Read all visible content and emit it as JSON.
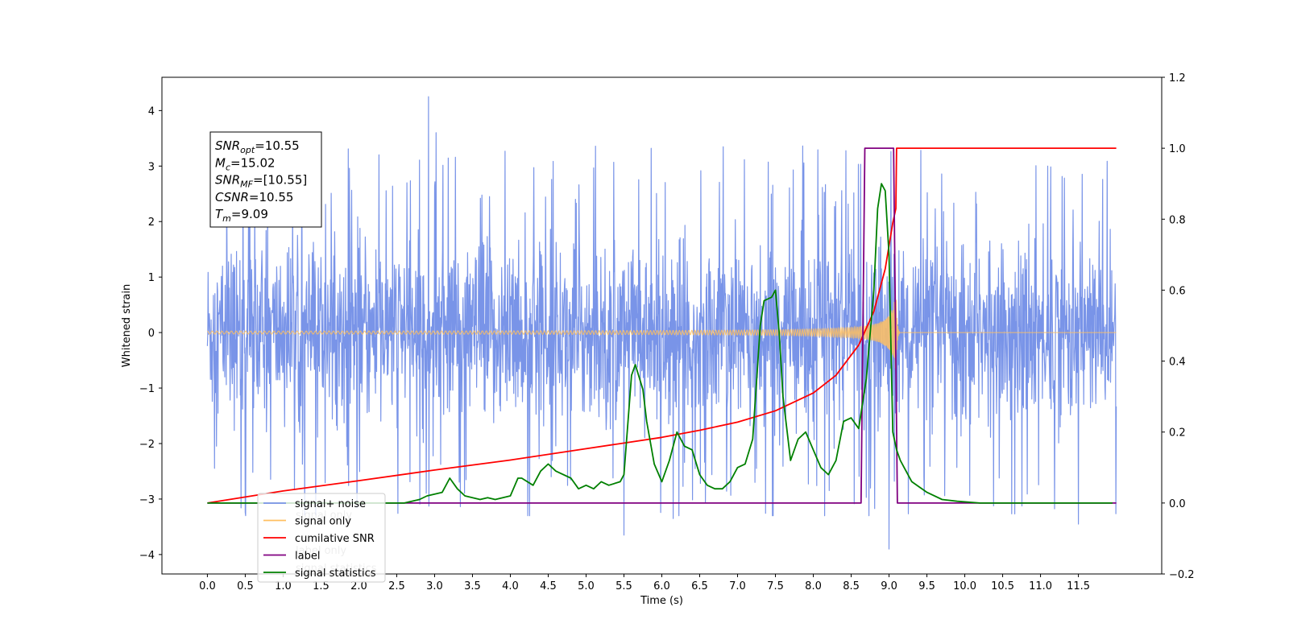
{
  "chart_data": {
    "type": "line",
    "xlabel": "Time (s)",
    "ylabel_left": "Whitened strain",
    "ylabel_right": "",
    "xlim": [
      -0.6,
      12.6
    ],
    "ylim_left": [
      -4.35,
      4.6
    ],
    "ylim_right": [
      -0.2,
      1.2
    ],
    "x_ticks": [
      0.0,
      0.5,
      1.0,
      1.5,
      2.0,
      2.5,
      3.0,
      3.5,
      4.0,
      4.5,
      5.0,
      5.5,
      6.0,
      6.5,
      7.0,
      7.5,
      8.0,
      8.5,
      9.0,
      9.5,
      10.0,
      10.5,
      11.0,
      11.5
    ],
    "x_tick_labels": [
      "0.0",
      "0.5",
      "1.0",
      "1.5",
      "2.0",
      "2.5",
      "3.0",
      "3.5",
      "4.0",
      "4.5",
      "5.0",
      "5.5",
      "6.0",
      "6.5",
      "7.0",
      "7.5",
      "8.0",
      "8.5",
      "9.0",
      "9.5",
      "10.0",
      "10.5",
      "11.0",
      "11.5"
    ],
    "y_left_ticks": [
      -4,
      -3,
      -2,
      -1,
      0,
      1,
      2,
      3,
      4
    ],
    "y_left_tick_labels": [
      "−4",
      "−3",
      "−2",
      "−1",
      "0",
      "1",
      "2",
      "3",
      "4"
    ],
    "y_right_ticks": [
      -0.2,
      0.0,
      0.2,
      0.4,
      0.6,
      0.8,
      1.0,
      1.2
    ],
    "y_right_tick_labels": [
      "−0.2",
      "0.0",
      "0.2",
      "0.4",
      "0.6",
      "0.8",
      "1.0",
      "1.2"
    ],
    "legend_position": "bottom-left",
    "grid": false,
    "series": [
      {
        "name": "signal+ noise",
        "axis": "left",
        "color": "#7994e8",
        "kind": "noise",
        "t_start": 0.0,
        "t_end": 12.0,
        "typical_range": [
          -2.3,
          2.3
        ],
        "extremes": [
          [
            2.92,
            4.25
          ],
          [
            9.0,
            -3.9
          ],
          [
            6.15,
            -3.35
          ],
          [
            5.5,
            -3.65
          ],
          [
            11.5,
            -3.45
          ],
          [
            3.02,
            3.6
          ]
        ]
      },
      {
        "name": "signal only",
        "axis": "left",
        "color": "#ffbf60",
        "kind": "chirp",
        "t_start": 0.0,
        "t_merger": 9.09,
        "t_end": 12.0,
        "peak_amplitude": 1.0
      },
      {
        "name": "cumilative SNR",
        "axis": "right",
        "color": "#ff0000",
        "x": [
          0.0,
          1.0,
          2.0,
          3.0,
          4.0,
          5.0,
          6.0,
          6.5,
          7.0,
          7.5,
          8.0,
          8.3,
          8.6,
          8.8,
          8.95,
          9.05,
          9.09,
          9.1,
          12.0
        ],
        "y": [
          0.0,
          0.034,
          0.063,
          0.093,
          0.121,
          0.153,
          0.185,
          0.205,
          0.228,
          0.26,
          0.31,
          0.36,
          0.445,
          0.54,
          0.66,
          0.79,
          0.83,
          1.0,
          1.0
        ]
      },
      {
        "name": "label",
        "axis": "right",
        "color": "#800080",
        "x": [
          0.0,
          8.63,
          8.68,
          9.06,
          9.11,
          12.0
        ],
        "y": [
          0.0,
          0.0,
          1.0,
          1.0,
          0.0,
          0.0
        ]
      },
      {
        "name": "signal statistics",
        "axis": "right",
        "color": "#008000",
        "x": [
          0.0,
          2.6,
          2.8,
          2.9,
          3.1,
          3.2,
          3.3,
          3.4,
          3.6,
          3.7,
          3.8,
          4.0,
          4.1,
          4.15,
          4.3,
          4.4,
          4.5,
          4.6,
          4.8,
          4.9,
          5.0,
          5.1,
          5.2,
          5.3,
          5.45,
          5.5,
          5.6,
          5.65,
          5.75,
          5.8,
          5.9,
          6.0,
          6.1,
          6.2,
          6.3,
          6.4,
          6.5,
          6.6,
          6.7,
          6.8,
          6.9,
          7.0,
          7.1,
          7.2,
          7.3,
          7.35,
          7.45,
          7.5,
          7.55,
          7.6,
          7.7,
          7.8,
          7.9,
          8.0,
          8.1,
          8.2,
          8.3,
          8.4,
          8.5,
          8.6,
          8.7,
          8.8,
          8.85,
          8.9,
          8.95,
          9.0,
          9.05,
          9.1,
          9.15,
          9.2,
          9.3,
          9.5,
          9.7,
          9.9,
          10.2,
          10.6,
          11.0,
          11.5,
          11.95
        ],
        "y": [
          0.0,
          0.0,
          0.01,
          0.02,
          0.03,
          0.07,
          0.04,
          0.02,
          0.01,
          0.015,
          0.01,
          0.02,
          0.07,
          0.07,
          0.05,
          0.09,
          0.11,
          0.09,
          0.07,
          0.04,
          0.05,
          0.04,
          0.06,
          0.05,
          0.06,
          0.08,
          0.36,
          0.39,
          0.32,
          0.23,
          0.11,
          0.06,
          0.12,
          0.2,
          0.16,
          0.15,
          0.08,
          0.05,
          0.04,
          0.04,
          0.06,
          0.1,
          0.11,
          0.18,
          0.5,
          0.57,
          0.58,
          0.6,
          0.48,
          0.3,
          0.12,
          0.18,
          0.2,
          0.15,
          0.1,
          0.08,
          0.12,
          0.23,
          0.24,
          0.21,
          0.35,
          0.6,
          0.83,
          0.9,
          0.88,
          0.7,
          0.2,
          0.15,
          0.12,
          0.1,
          0.06,
          0.03,
          0.01,
          0.005,
          0.0,
          0.0,
          0.0,
          0.0,
          0.0
        ]
      }
    ],
    "annotation": {
      "lines": [
        {
          "main": "SNR",
          "sub": "opt",
          "value": "=10.55"
        },
        {
          "main": "M",
          "sub": "c",
          "value": "=15.02"
        },
        {
          "main": "SNR",
          "sub": "MF",
          "value": "=[10.55]"
        },
        {
          "main": "CSNR",
          "sub": "",
          "value": "=10.55"
        },
        {
          "main": "T",
          "sub": "m",
          "value": "=9.09"
        }
      ]
    },
    "legend_entries": [
      "signal+ noise",
      "signal only",
      "cumilative SNR",
      "label",
      "signal statistics"
    ],
    "overlapped_legend_text": [
      "signal only",
      "label only",
      "signal statistics"
    ]
  }
}
